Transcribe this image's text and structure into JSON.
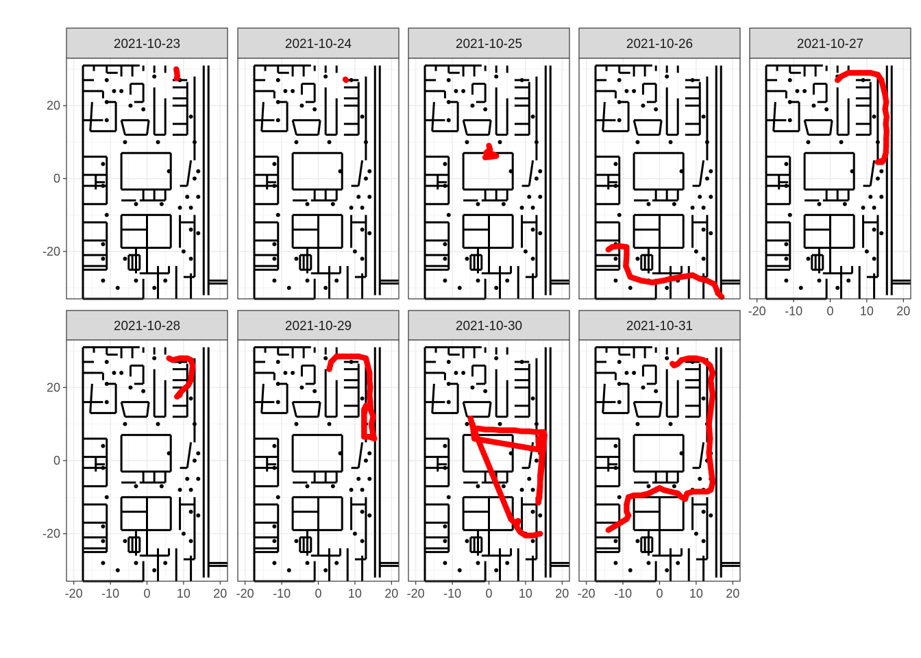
{
  "chart_data": {
    "type": "scatter",
    "layout": "facet_wrap",
    "ncol": 5,
    "x_axis": {
      "ticks": [
        -20,
        -10,
        0,
        10,
        20
      ],
      "tick_labels": [
        "-20",
        "-10",
        "0",
        "10",
        "20"
      ],
      "range": [
        -22,
        22
      ]
    },
    "y_axis": {
      "ticks": [
        -20,
        0,
        20
      ],
      "tick_labels": [
        "-20",
        "0",
        "20"
      ],
      "range": [
        -33,
        33
      ]
    },
    "xlabel": "",
    "ylabel": "",
    "grid": true,
    "point_color": "#ff0000",
    "floorplan_color": "#000000",
    "panels": [
      {
        "strip": "2021-10-23",
        "path": [
          [
            8,
            30
          ],
          [
            8.2,
            29
          ],
          [
            8.3,
            28
          ],
          [
            8.1,
            27.5
          ]
        ]
      },
      {
        "strip": "2021-10-24",
        "path": [
          [
            7.4,
            27.2
          ],
          [
            7.6,
            27
          ]
        ]
      },
      {
        "strip": "2021-10-25",
        "path": [
          [
            0,
            9
          ],
          [
            0.3,
            8
          ],
          [
            -0.8,
            7
          ],
          [
            0.5,
            6.5
          ],
          [
            1.5,
            6.2
          ],
          [
            -1,
            5.8
          ],
          [
            0.8,
            6
          ],
          [
            2,
            6.2
          ],
          [
            0,
            7.2
          ]
        ]
      },
      {
        "strip": "2021-10-26",
        "path": [
          [
            -14,
            -19.5
          ],
          [
            -13,
            -18.8
          ],
          [
            -11,
            -18.5
          ],
          [
            -9,
            -18.8
          ],
          [
            -9,
            -21
          ],
          [
            -9.2,
            -24
          ],
          [
            -8,
            -27
          ],
          [
            -5,
            -28
          ],
          [
            -2,
            -28.5
          ],
          [
            1,
            -28
          ],
          [
            3,
            -27.5
          ],
          [
            6,
            -27
          ],
          [
            9,
            -26.5
          ],
          [
            11,
            -27.5
          ],
          [
            13,
            -28
          ],
          [
            15,
            -29
          ],
          [
            16,
            -31.5
          ],
          [
            17,
            -32.5
          ]
        ]
      },
      {
        "strip": "2021-10-27",
        "path": [
          [
            2,
            27
          ],
          [
            3,
            28
          ],
          [
            5,
            29
          ],
          [
            8,
            29
          ],
          [
            11,
            29
          ],
          [
            13,
            28.5
          ],
          [
            14,
            27
          ],
          [
            14.5,
            25
          ],
          [
            15,
            23
          ],
          [
            15.3,
            21
          ],
          [
            15,
            19
          ],
          [
            15.4,
            17
          ],
          [
            15.2,
            15
          ],
          [
            15.4,
            13
          ],
          [
            15.3,
            11
          ],
          [
            15.3,
            9
          ],
          [
            15.2,
            7
          ],
          [
            14.6,
            5
          ],
          [
            13,
            4.5
          ],
          [
            14.2,
            4.5
          ]
        ]
      },
      {
        "strip": "2021-10-28",
        "path": [
          [
            6,
            28
          ],
          [
            7,
            27.5
          ],
          [
            9,
            28
          ],
          [
            11,
            28
          ],
          [
            12,
            27.5
          ],
          [
            12.5,
            26
          ],
          [
            12.2,
            24
          ],
          [
            12,
            22
          ],
          [
            11.2,
            20.5
          ],
          [
            10,
            19.5
          ],
          [
            9,
            18.5
          ],
          [
            8.2,
            17.5
          ],
          [
            9,
            18
          ]
        ]
      },
      {
        "strip": "2021-10-29",
        "path": [
          [
            3,
            25
          ],
          [
            3.5,
            27
          ],
          [
            5,
            28.5
          ],
          [
            7,
            28.5
          ],
          [
            9,
            28.5
          ],
          [
            11,
            28.5
          ],
          [
            13,
            28
          ],
          [
            13.5,
            26
          ],
          [
            14,
            24
          ],
          [
            14,
            22
          ],
          [
            14.2,
            20
          ],
          [
            14,
            18
          ],
          [
            14.2,
            16
          ],
          [
            14.3,
            14
          ],
          [
            15,
            12
          ],
          [
            14.5,
            10
          ],
          [
            14.8,
            8
          ],
          [
            15.3,
            6
          ],
          [
            14,
            6.5
          ],
          [
            12.5,
            6.5
          ],
          [
            12.5,
            14
          ],
          [
            13,
            15
          ],
          [
            12.6,
            13
          ]
        ]
      },
      {
        "strip": "2021-10-30",
        "path": [
          [
            -5,
            11.5
          ],
          [
            -4.5,
            9.5
          ],
          [
            -4,
            8.5
          ],
          [
            -3,
            8.8
          ],
          [
            -1,
            8.5
          ],
          [
            1,
            8.5
          ],
          [
            3,
            8.3
          ],
          [
            5,
            8.3
          ],
          [
            7,
            8.3
          ],
          [
            9,
            8
          ],
          [
            11,
            8
          ],
          [
            13,
            7.8
          ],
          [
            15,
            7.8
          ],
          [
            14.8,
            5
          ],
          [
            14.5,
            2
          ],
          [
            14.3,
            -1
          ],
          [
            14,
            -4
          ],
          [
            14,
            -7
          ],
          [
            13.8,
            -10
          ],
          [
            13.5,
            -11.5
          ],
          [
            15.2,
            7
          ],
          [
            13.5,
            6
          ],
          [
            13.6,
            3
          ],
          [
            -4,
            6
          ],
          [
            -4.5,
            10
          ],
          [
            -3.5,
            7
          ],
          [
            6,
            -16
          ],
          [
            7,
            -17
          ],
          [
            8,
            -16.5
          ],
          [
            7.5,
            -18
          ],
          [
            8.5,
            -19.5
          ],
          [
            10,
            -20.5
          ],
          [
            12,
            -20.5
          ],
          [
            14,
            -20
          ]
        ]
      },
      {
        "strip": "2021-10-31",
        "path": [
          [
            -14,
            -19
          ],
          [
            -9,
            -16
          ],
          [
            -8.5,
            -15
          ],
          [
            -9,
            -14
          ],
          [
            -9,
            -12
          ],
          [
            -8.5,
            -10
          ],
          [
            -7,
            -9.5
          ],
          [
            -5,
            -9.5
          ],
          [
            -3,
            -9
          ],
          [
            -1,
            -8
          ],
          [
            0,
            -7.5
          ],
          [
            1,
            -8
          ],
          [
            3,
            -8.5
          ],
          [
            5,
            -9
          ],
          [
            6,
            -10
          ],
          [
            7,
            -10.5
          ],
          [
            7.5,
            -9
          ],
          [
            9,
            -8.5
          ],
          [
            11,
            -8.5
          ],
          [
            13,
            -8.5
          ],
          [
            14,
            -8
          ],
          [
            14.5,
            -6
          ],
          [
            14,
            -2
          ],
          [
            13.5,
            2
          ],
          [
            13.8,
            6
          ],
          [
            13.5,
            10
          ],
          [
            14,
            14
          ],
          [
            14.5,
            18
          ],
          [
            14.2,
            20
          ],
          [
            14,
            22
          ],
          [
            14.5,
            24
          ],
          [
            13.8,
            26
          ],
          [
            12,
            27.5
          ],
          [
            10,
            28
          ],
          [
            8,
            28
          ],
          [
            6,
            27.5
          ],
          [
            5,
            26.5
          ],
          [
            4,
            26
          ],
          [
            3.5,
            26.5
          ]
        ]
      }
    ]
  }
}
